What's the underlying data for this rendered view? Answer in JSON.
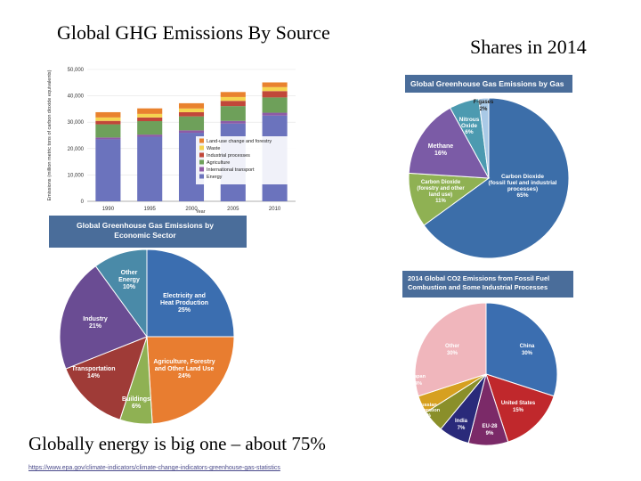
{
  "slide": {
    "title": "Global GHG Emissions By Source",
    "subtitle": "Shares in 2014",
    "caption": "Globally energy is big one – about 75%",
    "source_link": "https://www.epa.gov/climate-indicators/climate-change-indicators-greenhouse-gas-statistics"
  },
  "colors": {
    "header_blue": "#4a6d9a",
    "stack": [
      "#6b73bd",
      "#8e5ba6",
      "#6ea05a",
      "#c1473a",
      "#f5d44f",
      "#e9822e"
    ],
    "sector": [
      "#3b6eb0",
      "#e87d30",
      "#8fb153",
      "#9f3b37",
      "#6a4c93",
      "#4a8aa8"
    ],
    "gas": [
      "#3c6ea9",
      "#8fb153",
      "#7b5ba6",
      "#4c9ab0",
      "#a9c9e6"
    ],
    "country": [
      "#3b6eb0",
      "#c0282c",
      "#7b2a68",
      "#2a2a7a",
      "#8a8f2a",
      "#d6a020",
      "#f0b6bc"
    ]
  },
  "chart_data": [
    {
      "type": "bar",
      "stacked": true,
      "ylabel": "Emissions (million metric tons of carbon dioxide equivalents)",
      "xlabel": "Year",
      "categories": [
        "1990",
        "1995",
        "2000",
        "2005",
        "2010"
      ],
      "yticks": [
        "0",
        "10,000",
        "20,000",
        "30,000",
        "40,000",
        "50,000"
      ],
      "ylim": [
        0,
        50000
      ],
      "series": [
        {
          "name": "Energy",
          "values": [
            23500,
            24500,
            26000,
            29500,
            32500
          ]
        },
        {
          "name": "International transport",
          "values": [
            700,
            800,
            900,
            1000,
            1100
          ]
        },
        {
          "name": "Agriculture",
          "values": [
            5000,
            5100,
            5300,
            5600,
            5800
          ]
        },
        {
          "name": "Industrial processes",
          "values": [
            1300,
            1400,
            1600,
            2000,
            2400
          ]
        },
        {
          "name": "Waste",
          "values": [
            1300,
            1350,
            1400,
            1450,
            1500
          ]
        },
        {
          "name": "Land-use change and forestry",
          "values": [
            2000,
            2100,
            2000,
            1900,
            1800
          ]
        }
      ],
      "legend_order": [
        "Land-use change and forestry",
        "Waste",
        "Industrial processes",
        "Agriculture",
        "International transport",
        "Energy"
      ],
      "legend": "inside-center"
    },
    {
      "type": "pie",
      "title": "Global Greenhouse Gas Emissions by Economic Sector",
      "slices": [
        {
          "label": "Electricity and Heat Production",
          "pct_label": "25%",
          "value": 25
        },
        {
          "label": "Agriculture, Forestry and Other Land Use",
          "pct_label": "24%",
          "value": 24
        },
        {
          "label": "Buildings",
          "pct_label": "6%",
          "value": 6
        },
        {
          "label": "Transportation",
          "pct_label": "14%",
          "value": 14
        },
        {
          "label": "Industry",
          "pct_label": "21%",
          "value": 21
        },
        {
          "label": "Other Energy",
          "pct_label": "10%",
          "value": 10
        }
      ]
    },
    {
      "type": "pie",
      "title": "Global Greenhouse Gas Emissions by Gas",
      "slices": [
        {
          "label": "Carbon Dioxide (fossil fuel and industrial processes)",
          "pct_label": "65%",
          "value": 65
        },
        {
          "label": "Carbon Dioxide (forestry and other land use)",
          "pct_label": "11%",
          "value": 11
        },
        {
          "label": "Methane",
          "pct_label": "16%",
          "value": 16
        },
        {
          "label": "Nitrous Oxide",
          "pct_label": "6%",
          "value": 6
        },
        {
          "label": "F-gases",
          "pct_label": "2%",
          "value": 2
        }
      ]
    },
    {
      "type": "pie",
      "title": "2014 Global CO2 Emissions from Fossil Fuel Combustion and Some Industrial Processes",
      "slices": [
        {
          "label": "China",
          "pct_label": "30%",
          "value": 30
        },
        {
          "label": "United States",
          "pct_label": "15%",
          "value": 15
        },
        {
          "label": "EU-28",
          "pct_label": "9%",
          "value": 9
        },
        {
          "label": "India",
          "pct_label": "7%",
          "value": 7
        },
        {
          "label": "Russian Federation",
          "pct_label": "5%",
          "value": 5
        },
        {
          "label": "Japan",
          "pct_label": "4%",
          "value": 4
        },
        {
          "label": "Other",
          "pct_label": "30%",
          "value": 30
        }
      ]
    }
  ]
}
